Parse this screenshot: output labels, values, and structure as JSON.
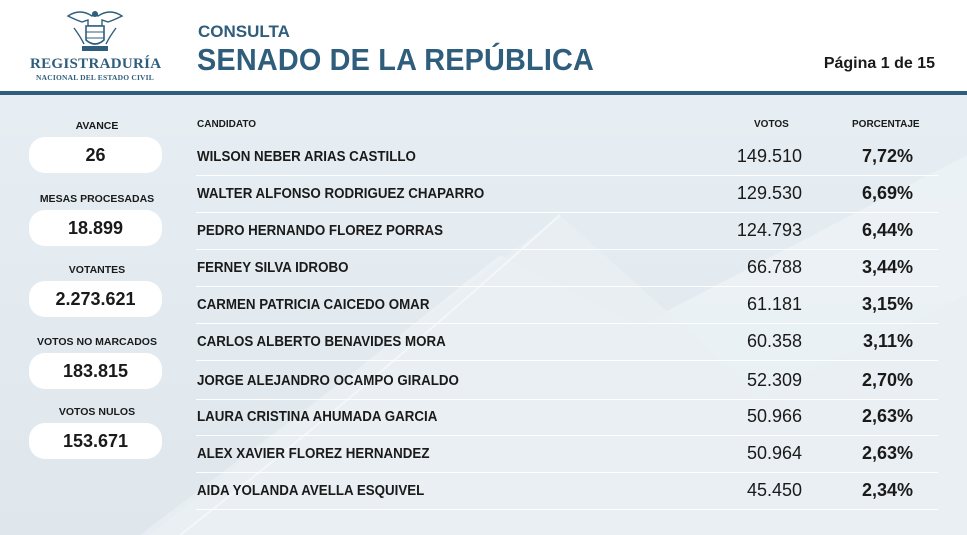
{
  "header": {
    "logo_name": "REGISTRADURÍA",
    "logo_subtitle": "NACIONAL DEL ESTADO CIVIL",
    "subtitle": "CONSULTA",
    "title": "SENADO DE LA REPÚBLICA",
    "page_indicator": "Página 1 de 15"
  },
  "stats": [
    {
      "label": "AVANCE",
      "value": "26"
    },
    {
      "label": "MESAS PROCESADAS",
      "value": "18.899"
    },
    {
      "label": "VOTANTES",
      "value": "2.273.621"
    },
    {
      "label": "VOTOS NO MARCADOS",
      "value": "183.815"
    },
    {
      "label": "VOTOS NULOS",
      "value": "153.671"
    }
  ],
  "table": {
    "headers": {
      "candidate": "CANDIDATO",
      "votes": "VOTOS",
      "percentage": "PORCENTAJE"
    },
    "rows": [
      {
        "candidate": "WILSON NEBER ARIAS CASTILLO",
        "votes": "149.510",
        "percentage": "7,72%"
      },
      {
        "candidate": "WALTER ALFONSO RODRIGUEZ CHAPARRO",
        "votes": "129.530",
        "percentage": "6,69%"
      },
      {
        "candidate": "PEDRO HERNANDO FLOREZ PORRAS",
        "votes": "124.793",
        "percentage": "6,44%"
      },
      {
        "candidate": "FERNEY SILVA IDROBO",
        "votes": "66.788",
        "percentage": "3,44%"
      },
      {
        "candidate": "CARMEN PATRICIA CAICEDO OMAR",
        "votes": "61.181",
        "percentage": "3,15%"
      },
      {
        "candidate": "CARLOS ALBERTO BENAVIDES MORA",
        "votes": "60.358",
        "percentage": "3,11%"
      },
      {
        "candidate": "JORGE ALEJANDRO OCAMPO GIRALDO",
        "votes": "52.309",
        "percentage": "2,70%"
      },
      {
        "candidate": "LAURA CRISTINA AHUMADA GARCIA",
        "votes": "50.966",
        "percentage": "2,63%"
      },
      {
        "candidate": "ALEX XAVIER FLOREZ HERNANDEZ",
        "votes": "50.964",
        "percentage": "2,63%"
      },
      {
        "candidate": "AIDA YOLANDA AVELLA ESQUIVEL",
        "votes": "45.450",
        "percentage": "2,34%"
      }
    ]
  },
  "colors": {
    "brand": "#2f5d7c",
    "panel": "#e3ebf0"
  },
  "icons": {
    "logo": "coat-of-arms-icon"
  }
}
